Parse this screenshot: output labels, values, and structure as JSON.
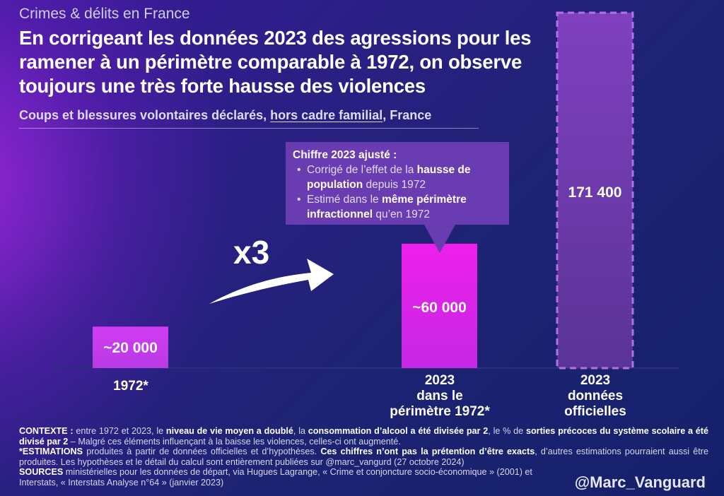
{
  "header": {
    "topic": "Crimes & délits en France",
    "title": "En corrigeant les données 2023 des agressions pour les ramener à un périmètre comparable à 1972, on observe toujours une très forte hausse des violences",
    "subtitle_a": "Coups et blessures volontaires déclarés, ",
    "subtitle_b": "hors cadre familial",
    "subtitle_c": ", France"
  },
  "colors": {
    "bar_1972": "#c43af0",
    "bar_2023_adj": "#e01fe6",
    "bar_2023_off": "#6b3aa8",
    "bar_2023_off_border": "#b070e6",
    "callout_bg": "#6a3cb2"
  },
  "chart_data": {
    "type": "bar",
    "categories": [
      "1972*",
      "2023 dans le périmètre 1972*",
      "2023 données officielles"
    ],
    "values": [
      20000,
      60000,
      171400
    ],
    "value_labels": [
      "~20 000",
      "~60 000",
      "171 400"
    ],
    "category_lines": [
      [
        "1972*"
      ],
      [
        "2023",
        "dans le",
        "périmètre 1972*"
      ],
      [
        "2023",
        "données",
        "officielles"
      ]
    ],
    "ylim": [
      0,
      171400
    ],
    "grid": false
  },
  "annotation": {
    "multiplier": "x3",
    "callout_title": "Chiffre 2023 ajusté :",
    "b1_a": "Corrigé de l’effet de la ",
    "b1_b": "hausse de population",
    "b1_c": " depuis 1972",
    "b2_a": "Estimé dans le ",
    "b2_b": "même périmètre infractionnel",
    "b2_c": " qu’en 1972"
  },
  "footnotes": {
    "c_lbl": "CONTEXTE :",
    "c_1": " entre 1972 et 2023, le ",
    "c_2": "niveau de vie moyen a doublé",
    "c_3": ", la ",
    "c_4": "consommation d’alcool a été divisée par 2",
    "c_5": ", le % de ",
    "c_6": "sorties précoces du système scolaire a été divisé par 2",
    "c_7": " – Malgré ces éléments influençant à la baisse les violences, celles-ci ont augmenté.",
    "e_lbl": "*ESTIMATIONS",
    "e_1": " produites à partir de données officielles et d’hypothèses. ",
    "e_2": "Ces chiffres n’ont pas la prétention d’être exacts",
    "e_3": ", d’autres estimations pourraient aussi être produites. Les hypothèses et le détail du calcul sont entièrement publiées sur @marc_vangurd (27 octobre 2024)",
    "s_lbl": "SOURCES",
    "s_1": " ministérielles pour les données de départ, via Hugues Lagrange, « Crime et conjoncture socio-économique » (2001) et Interstats, « Interstats Analyse n°64 » (janvier 2023)",
    "handle": "@Marc_Vanguard"
  }
}
